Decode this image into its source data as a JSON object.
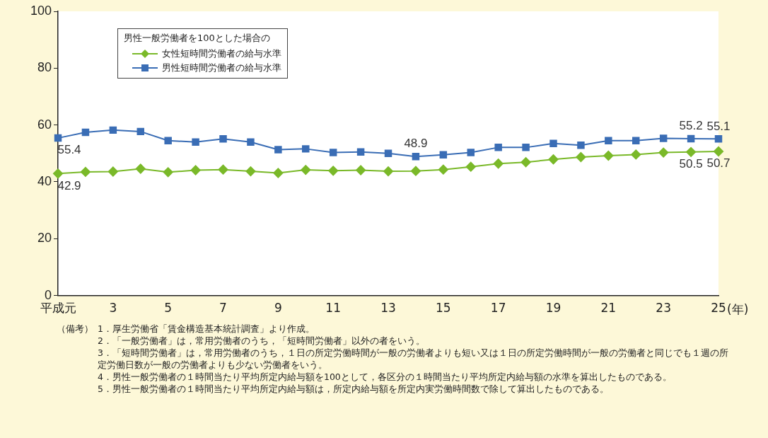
{
  "chart_data": {
    "type": "line",
    "xlabel": "(年)",
    "legend_title": "男性一般労働者を100とした場合の",
    "legend": "top left",
    "grid": false,
    "categories": [
      "平成元",
      null,
      "3",
      null,
      "5",
      null,
      "7",
      null,
      "9",
      null,
      "11",
      null,
      "13",
      null,
      "15",
      null,
      "17",
      null,
      "19",
      null,
      "21",
      null,
      "23",
      null,
      "25"
    ],
    "ylim": [
      0,
      100
    ],
    "yticks": [
      0,
      20,
      40,
      60,
      80,
      100
    ],
    "series": [
      {
        "name": "女性短時間労働者の給与水準",
        "color": "#7ab929",
        "marker": "diamond",
        "values": [
          42.9,
          43.5,
          43.6,
          44.6,
          43.4,
          44.1,
          44.3,
          43.7,
          43.1,
          44.2,
          43.9,
          44.1,
          43.7,
          43.8,
          44.3,
          45.3,
          46.4,
          46.9,
          47.9,
          48.7,
          49.2,
          49.6,
          50.3,
          50.5,
          50.7
        ]
      },
      {
        "name": "男性短時間労働者の給与水準",
        "color": "#3a6db5",
        "marker": "square",
        "values": [
          55.4,
          57.4,
          58.2,
          57.7,
          54.5,
          54.0,
          55.1,
          54.0,
          51.3,
          51.6,
          50.3,
          50.5,
          50.0,
          48.9,
          49.5,
          50.3,
          52.1,
          52.1,
          53.5,
          52.9,
          54.5,
          54.5,
          55.3,
          55.2,
          55.1
        ]
      }
    ],
    "annotations": [
      {
        "text": "55.4",
        "x": "平成元",
        "y": 55.4
      },
      {
        "text": "42.9",
        "x": "平成元",
        "y": 42.9
      },
      {
        "text": "48.9",
        "y": 48.9
      },
      {
        "text": "55.2",
        "y": 55.2
      },
      {
        "text": "55.1",
        "x": "25",
        "y": 55.1
      },
      {
        "text": "50.5",
        "y": 50.5
      },
      {
        "text": "50.7",
        "x": "25",
        "y": 50.7
      },
      "（備考）",
      "1．厚生労働省「賃金構造基本統計調査」より作成。",
      "2．「一般労働者」は，常用労働者のうち，「短時間労働者」以外の者をいう。",
      "3．「短時間労働者」は，常用労働者のうち，１日の所定労働時間が一般の労働者よりも短い又は１日の所定労働時間が一般の労働者と同じでも１週の所定労働日数が一般の労働者よりも少ない労働者をいう。",
      "4．男性一般労働者の１時間当たり平均所定内給与額を100として，各区分の１時間当たり平均所定内給与額の水準を算出したものである。",
      "5．男性一般労働者の１時間当たり平均所定内給与額は，所定内給与額を所定内実労働時間数で除して算出したものである。"
    ]
  }
}
